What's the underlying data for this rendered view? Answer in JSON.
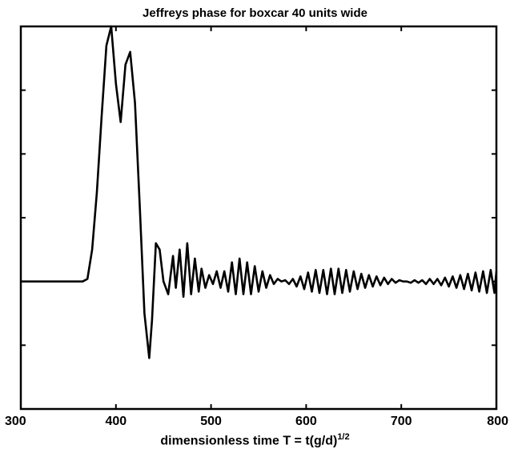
{
  "chart_data": {
    "type": "line",
    "title": "Jeffreys phase for boxcar 40 units wide",
    "xlabel_main": "dimensionless time T = t(g/d)",
    "xlabel_sup": "1/2",
    "ylabel": "",
    "xlim": [
      300,
      800
    ],
    "ylim": [
      -1.0,
      2.0
    ],
    "xticks": [
      300,
      400,
      500,
      600,
      700,
      800
    ],
    "xtick_labels": [
      "300",
      "400",
      "500",
      "600",
      "700",
      "800"
    ],
    "yticks": [
      -0.5,
      0,
      0.5,
      1.0,
      1.5
    ],
    "ytick_labels_shown": false,
    "grid": false,
    "series": [
      {
        "x": [
          300,
          320,
          340,
          355,
          365,
          370,
          375,
          380,
          385,
          390,
          395,
          400,
          405,
          410,
          415,
          420,
          425,
          430,
          435,
          438,
          442,
          446,
          450,
          455,
          460,
          463,
          467,
          471,
          475,
          479,
          483,
          487,
          490,
          494,
          498,
          502,
          506,
          510,
          514,
          518,
          522,
          526,
          530,
          534,
          538,
          542,
          546,
          550,
          554,
          558,
          562,
          566,
          570,
          574,
          578,
          582,
          586,
          590,
          594,
          598,
          602,
          606,
          610,
          614,
          618,
          622,
          626,
          630,
          634,
          638,
          642,
          646,
          650,
          654,
          658,
          662,
          666,
          670,
          674,
          678,
          682,
          686,
          690,
          694,
          698,
          702,
          706,
          710,
          714,
          718,
          722,
          726,
          730,
          734,
          738,
          742,
          746,
          750,
          754,
          758,
          762,
          766,
          770,
          774,
          778,
          782,
          786,
          790,
          794,
          798,
          800
        ],
        "y": [
          0.0,
          0.0,
          0.0,
          0.0,
          0.0,
          0.02,
          0.25,
          0.7,
          1.3,
          1.85,
          2.0,
          1.55,
          1.25,
          1.7,
          1.8,
          1.4,
          0.6,
          -0.25,
          -0.6,
          -0.3,
          0.3,
          0.25,
          0.0,
          -0.1,
          0.2,
          -0.05,
          0.25,
          -0.12,
          0.3,
          -0.1,
          0.18,
          -0.08,
          0.1,
          -0.05,
          0.05,
          -0.02,
          0.08,
          -0.05,
          0.08,
          -0.08,
          0.15,
          -0.1,
          0.18,
          -0.1,
          0.15,
          -0.1,
          0.12,
          -0.08,
          0.08,
          -0.05,
          0.05,
          -0.02,
          0.02,
          0.0,
          0.01,
          -0.02,
          0.02,
          -0.04,
          0.04,
          -0.06,
          0.07,
          -0.08,
          0.09,
          -0.09,
          0.09,
          -0.1,
          0.1,
          -0.1,
          0.1,
          -0.09,
          0.09,
          -0.08,
          0.08,
          -0.06,
          0.06,
          -0.05,
          0.05,
          -0.04,
          0.04,
          -0.03,
          0.03,
          -0.02,
          0.02,
          -0.01,
          0.01,
          0.0,
          0.0,
          -0.01,
          0.01,
          -0.01,
          0.01,
          -0.02,
          0.02,
          -0.02,
          0.02,
          -0.03,
          0.03,
          -0.04,
          0.04,
          -0.05,
          0.05,
          -0.06,
          0.06,
          -0.07,
          0.07,
          -0.08,
          0.08,
          -0.09,
          0.09,
          -0.09,
          0.08
        ]
      }
    ]
  }
}
